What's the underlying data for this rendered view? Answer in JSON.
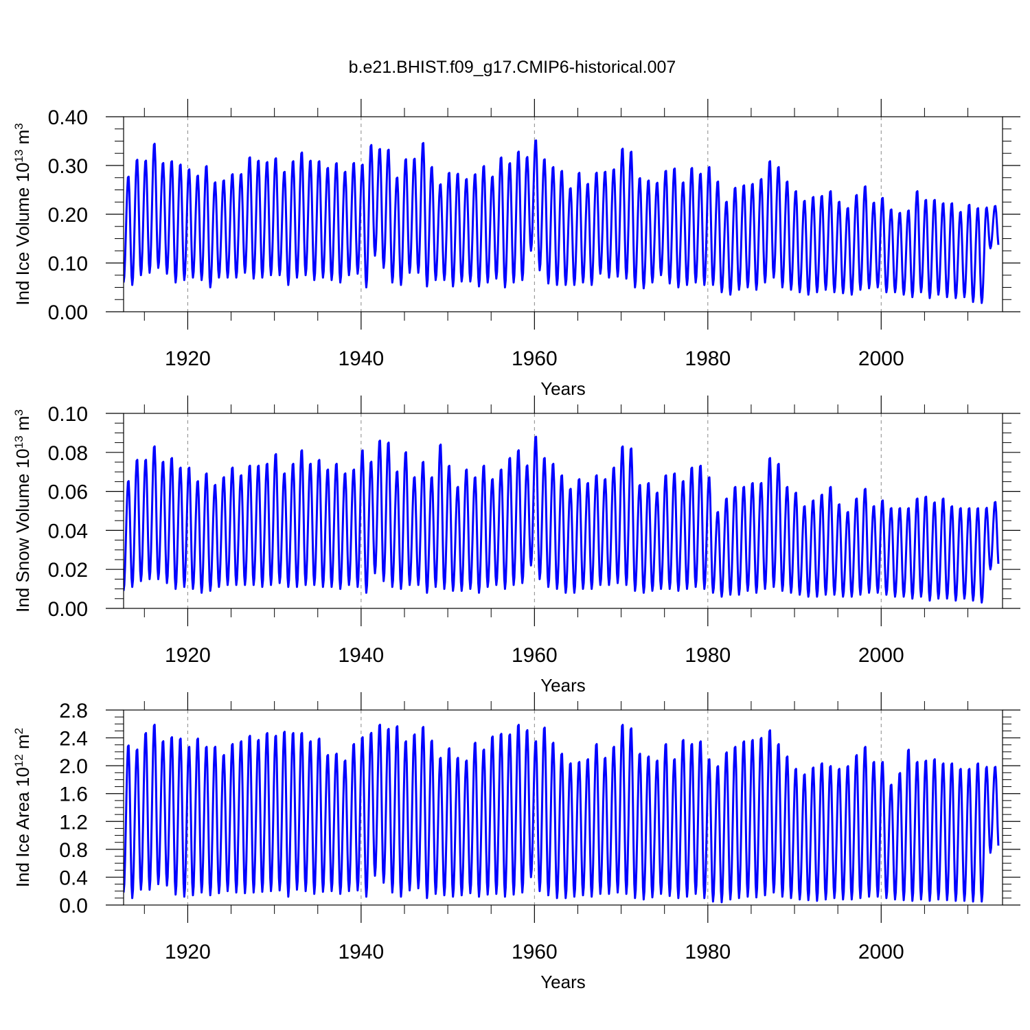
{
  "title": "b.e21.BHIST.f09_g17.CMIP6-historical.007",
  "line_color": "#0000ff",
  "chart_data": [
    {
      "type": "line",
      "ylabel": "Ind Ice Volume 10",
      "ylabel_exp": "13",
      "ylabel_unit": " m",
      "ylabel_unit_exp": "3",
      "xlabel": "Years",
      "xlim": [
        1912.6,
        2014.0
      ],
      "ylim": [
        0.0,
        0.4
      ],
      "yticks": [
        0.0,
        0.1,
        0.2,
        0.3,
        0.4
      ],
      "ytick_labels": [
        "0.00",
        "0.10",
        "0.20",
        "0.30",
        "0.40"
      ],
      "xticks": [
        1920,
        1940,
        1960,
        1980,
        2000
      ],
      "xtick_labels": [
        "1920",
        "1940",
        "1960",
        "1980",
        "2000"
      ],
      "grid_x": true,
      "series": [
        {
          "x_start": 1912.6,
          "x_step": 1,
          "max": [
            0.28,
            0.315,
            0.313,
            0.348,
            0.308,
            0.312,
            0.305,
            0.295,
            0.282,
            0.302,
            0.268,
            0.272,
            0.285,
            0.285,
            0.32,
            0.313,
            0.31,
            0.318,
            0.29,
            0.312,
            0.33,
            0.313,
            0.312,
            0.298,
            0.308,
            0.29,
            0.308,
            0.305,
            0.345,
            0.337,
            0.336,
            0.278,
            0.316,
            0.317,
            0.35,
            0.3,
            0.264,
            0.288,
            0.286,
            0.275,
            0.285,
            0.302,
            0.28,
            0.32,
            0.308,
            0.332,
            0.32,
            0.355,
            0.316,
            0.3,
            0.292,
            0.256,
            0.288,
            0.265,
            0.288,
            0.29,
            0.295,
            0.338,
            0.332,
            0.277,
            0.272,
            0.267,
            0.292,
            0.297,
            0.268,
            0.298,
            0.286,
            0.3,
            0.27,
            0.228,
            0.257,
            0.262,
            0.265,
            0.275,
            0.312,
            0.3,
            0.27,
            0.25,
            0.23,
            0.238,
            0.24,
            0.25,
            0.228,
            0.215,
            0.242,
            0.26,
            0.226,
            0.236,
            0.212,
            0.205,
            0.21,
            0.25,
            0.232,
            0.232,
            0.225,
            0.225,
            0.207,
            0.222,
            0.215,
            0.215,
            0.218
          ],
          "min": [
            0.06,
            0.055,
            0.075,
            0.08,
            0.09,
            0.078,
            0.06,
            0.065,
            0.07,
            0.065,
            0.05,
            0.07,
            0.07,
            0.07,
            0.08,
            0.068,
            0.07,
            0.075,
            0.075,
            0.055,
            0.07,
            0.075,
            0.065,
            0.07,
            0.065,
            0.06,
            0.075,
            0.078,
            0.05,
            0.115,
            0.09,
            0.06,
            0.055,
            0.08,
            0.08,
            0.052,
            0.065,
            0.065,
            0.052,
            0.062,
            0.062,
            0.052,
            0.06,
            0.068,
            0.05,
            0.06,
            0.065,
            0.125,
            0.085,
            0.058,
            0.055,
            0.055,
            0.055,
            0.06,
            0.055,
            0.078,
            0.07,
            0.072,
            0.068,
            0.05,
            0.048,
            0.06,
            0.075,
            0.058,
            0.05,
            0.055,
            0.06,
            0.055,
            0.055,
            0.04,
            0.035,
            0.045,
            0.05,
            0.045,
            0.06,
            0.07,
            0.05,
            0.045,
            0.04,
            0.035,
            0.04,
            0.045,
            0.04,
            0.038,
            0.035,
            0.045,
            0.048,
            0.05,
            0.04,
            0.04,
            0.035,
            0.03,
            0.04,
            0.028,
            0.035,
            0.03,
            0.028,
            0.03,
            0.02,
            0.018,
            0.13
          ]
        }
      ]
    },
    {
      "type": "line",
      "ylabel": "Ind Snow Volume 10",
      "ylabel_exp": "13",
      "ylabel_unit": " m",
      "ylabel_unit_exp": "3",
      "xlabel": "Years",
      "xlim": [
        1912.6,
        2014.0
      ],
      "ylim": [
        0.0,
        0.1
      ],
      "yticks": [
        0.0,
        0.02,
        0.04,
        0.06,
        0.08,
        0.1
      ],
      "ytick_labels": [
        "0.00",
        "0.02",
        "0.04",
        "0.06",
        "0.08",
        "0.10"
      ],
      "xticks": [
        1920,
        1940,
        1960,
        1980,
        2000
      ],
      "xtick_labels": [
        "1920",
        "1940",
        "1960",
        "1980",
        "2000"
      ],
      "grid_x": true,
      "series": [
        {
          "x_start": 1912.6,
          "x_step": 1,
          "max": [
            0.066,
            0.077,
            0.077,
            0.084,
            0.076,
            0.078,
            0.073,
            0.073,
            0.066,
            0.07,
            0.064,
            0.068,
            0.073,
            0.069,
            0.074,
            0.074,
            0.075,
            0.08,
            0.07,
            0.075,
            0.082,
            0.075,
            0.077,
            0.072,
            0.075,
            0.07,
            0.072,
            0.082,
            0.076,
            0.087,
            0.086,
            0.071,
            0.081,
            0.068,
            0.076,
            0.068,
            0.085,
            0.074,
            0.063,
            0.072,
            0.068,
            0.074,
            0.067,
            0.072,
            0.078,
            0.082,
            0.074,
            0.089,
            0.078,
            0.075,
            0.069,
            0.062,
            0.067,
            0.065,
            0.069,
            0.067,
            0.073,
            0.084,
            0.083,
            0.064,
            0.065,
            0.06,
            0.069,
            0.07,
            0.066,
            0.073,
            0.074,
            0.068,
            0.05,
            0.057,
            0.063,
            0.063,
            0.065,
            0.065,
            0.078,
            0.075,
            0.063,
            0.06,
            0.053,
            0.056,
            0.059,
            0.063,
            0.054,
            0.05,
            0.057,
            0.062,
            0.053,
            0.056,
            0.052,
            0.052,
            0.052,
            0.057,
            0.058,
            0.055,
            0.057,
            0.053,
            0.052,
            0.052,
            0.052,
            0.052,
            0.055
          ],
          "min": [
            0.009,
            0.011,
            0.014,
            0.015,
            0.015,
            0.013,
            0.01,
            0.011,
            0.01,
            0.008,
            0.009,
            0.011,
            0.012,
            0.012,
            0.012,
            0.012,
            0.011,
            0.012,
            0.013,
            0.011,
            0.011,
            0.012,
            0.012,
            0.011,
            0.011,
            0.01,
            0.012,
            0.011,
            0.008,
            0.018,
            0.014,
            0.011,
            0.01,
            0.012,
            0.012,
            0.008,
            0.011,
            0.01,
            0.009,
            0.009,
            0.01,
            0.008,
            0.011,
            0.012,
            0.01,
            0.012,
            0.013,
            0.022,
            0.015,
            0.011,
            0.01,
            0.008,
            0.008,
            0.01,
            0.01,
            0.012,
            0.012,
            0.013,
            0.012,
            0.009,
            0.008,
            0.009,
            0.01,
            0.01,
            0.009,
            0.01,
            0.011,
            0.01,
            0.008,
            0.006,
            0.007,
            0.007,
            0.009,
            0.008,
            0.01,
            0.011,
            0.009,
            0.008,
            0.007,
            0.006,
            0.006,
            0.007,
            0.007,
            0.006,
            0.006,
            0.007,
            0.008,
            0.008,
            0.007,
            0.006,
            0.006,
            0.005,
            0.006,
            0.004,
            0.005,
            0.005,
            0.004,
            0.005,
            0.004,
            0.003,
            0.02
          ]
        }
      ]
    },
    {
      "type": "line",
      "ylabel": "Ind Ice Area 10",
      "ylabel_exp": "12",
      "ylabel_unit": " m",
      "ylabel_unit_exp": "2",
      "xlabel": "Years",
      "xlim": [
        1912.6,
        2014.0
      ],
      "ylim": [
        0.0,
        2.8
      ],
      "yticks": [
        0.0,
        0.4,
        0.8,
        1.2,
        1.6,
        2.0,
        2.4,
        2.8
      ],
      "ytick_labels": [
        "0.0",
        "0.4",
        "0.8",
        "1.2",
        "1.6",
        "2.0",
        "2.4",
        "2.8"
      ],
      "xticks": [
        1920,
        1940,
        1960,
        1980,
        2000
      ],
      "xtick_labels": [
        "1920",
        "1940",
        "1960",
        "1980",
        "2000"
      ],
      "grid_x": true,
      "series": [
        {
          "x_start": 1912.6,
          "x_step": 1,
          "max": [
            2.32,
            2.26,
            2.5,
            2.62,
            2.38,
            2.44,
            2.42,
            2.3,
            2.42,
            2.3,
            2.3,
            2.18,
            2.34,
            2.38,
            2.46,
            2.4,
            2.5,
            2.46,
            2.52,
            2.5,
            2.5,
            2.38,
            2.42,
            2.18,
            2.2,
            2.1,
            2.34,
            2.44,
            2.5,
            2.62,
            2.56,
            2.6,
            2.38,
            2.48,
            2.59,
            2.39,
            2.14,
            2.28,
            2.14,
            2.1,
            2.36,
            2.26,
            2.45,
            2.49,
            2.48,
            2.62,
            2.54,
            2.38,
            2.58,
            2.36,
            2.2,
            2.06,
            2.08,
            2.12,
            2.34,
            2.14,
            2.3,
            2.62,
            2.57,
            2.2,
            2.16,
            2.1,
            2.34,
            2.12,
            2.4,
            2.34,
            2.38,
            2.12,
            2.02,
            2.22,
            2.3,
            2.38,
            2.4,
            2.43,
            2.54,
            2.34,
            2.16,
            1.98,
            1.9,
            2.0,
            2.06,
            2.02,
            1.98,
            2.02,
            2.18,
            2.3,
            2.08,
            2.08,
            1.75,
            1.92,
            2.26,
            2.08,
            2.1,
            2.12,
            2.06,
            2.06,
            1.98,
            1.98,
            2.06,
            2.0,
            2.0
          ],
          "min": [
            0.18,
            0.1,
            0.22,
            0.22,
            0.3,
            0.28,
            0.15,
            0.12,
            0.14,
            0.18,
            0.14,
            0.17,
            0.2,
            0.18,
            0.17,
            0.18,
            0.19,
            0.2,
            0.21,
            0.12,
            0.22,
            0.2,
            0.16,
            0.19,
            0.2,
            0.16,
            0.2,
            0.21,
            0.12,
            0.42,
            0.32,
            0.18,
            0.12,
            0.21,
            0.24,
            0.1,
            0.16,
            0.14,
            0.12,
            0.14,
            0.17,
            0.12,
            0.15,
            0.16,
            0.12,
            0.15,
            0.18,
            0.4,
            0.2,
            0.14,
            0.1,
            0.1,
            0.12,
            0.14,
            0.12,
            0.16,
            0.16,
            0.18,
            0.16,
            0.1,
            0.08,
            0.11,
            0.16,
            0.13,
            0.1,
            0.12,
            0.16,
            0.1,
            0.05,
            0.04,
            0.08,
            0.1,
            0.12,
            0.11,
            0.14,
            0.18,
            0.12,
            0.1,
            0.08,
            0.07,
            0.06,
            0.08,
            0.1,
            0.08,
            0.08,
            0.1,
            0.12,
            0.12,
            0.1,
            0.08,
            0.07,
            0.06,
            0.08,
            0.06,
            0.08,
            0.07,
            0.06,
            0.06,
            0.05,
            0.05,
            0.75
          ]
        }
      ]
    }
  ]
}
